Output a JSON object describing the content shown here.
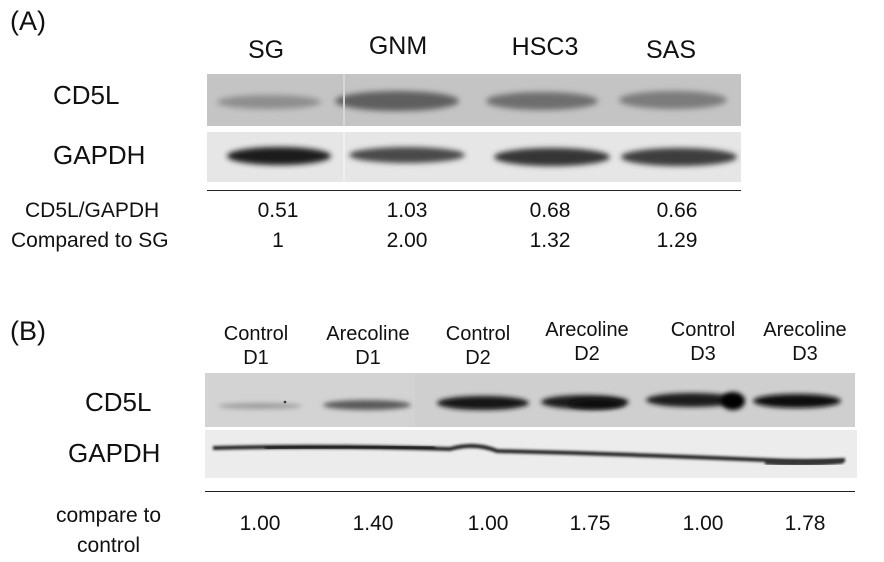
{
  "panel_a": {
    "label": "(A)",
    "lanes": [
      "SG",
      "GNM",
      "HSC3",
      "SAS"
    ],
    "blot_rows": [
      "CD5L",
      "GAPDH"
    ],
    "quant_rows": [
      {
        "label": "CD5L/GAPDH",
        "values": [
          "0.51",
          "1.03",
          "0.68",
          "0.66"
        ]
      },
      {
        "label": "Compared to SG",
        "values": [
          "1",
          "2.00",
          "1.32",
          "1.29"
        ]
      }
    ]
  },
  "panel_b": {
    "label": "(B)",
    "lanes": [
      {
        "line1": "Control",
        "line2": "D1"
      },
      {
        "line1": "Arecoline",
        "line2": "D1"
      },
      {
        "line1": "Control",
        "line2": "D2"
      },
      {
        "line1": "Arecoline",
        "line2": "D2"
      },
      {
        "line1": "Control",
        "line2": "D3"
      },
      {
        "line1": "Arecoline",
        "line2": "D3"
      }
    ],
    "blot_rows": [
      "CD5L",
      "GAPDH"
    ],
    "quant_row": {
      "label_line1": "compare to",
      "label_line2": "control",
      "values": [
        "1.00",
        "1.40",
        "1.00",
        "1.75",
        "1.00",
        "1.78"
      ]
    }
  }
}
